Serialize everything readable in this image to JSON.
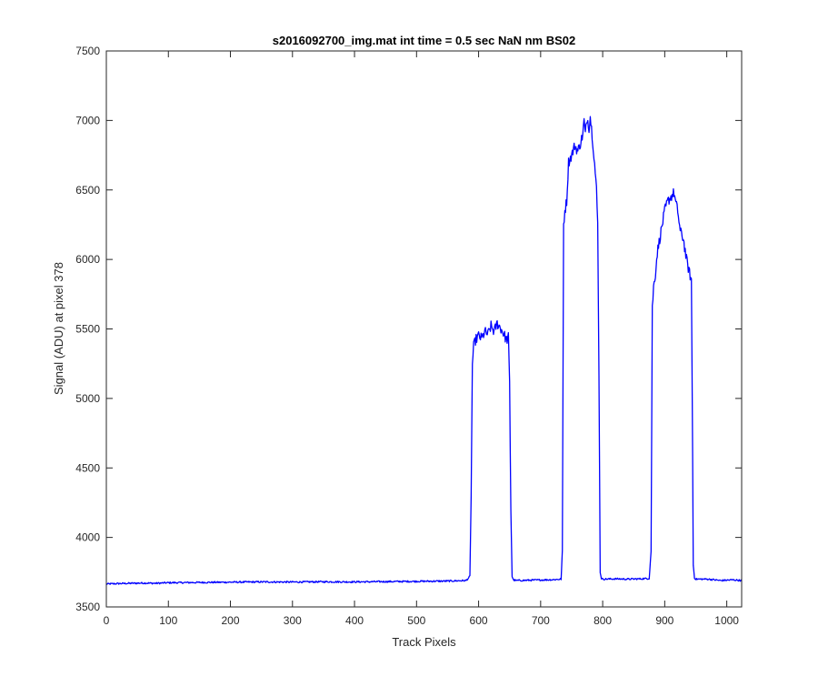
{
  "chart_data": {
    "type": "line",
    "title": "s2016092700_img.mat int time = 0.5 sec  NaN nm BS02",
    "xlabel": "Track Pixels",
    "ylabel": "Signal (ADU) at pixel 378",
    "xlim": [
      0,
      1024
    ],
    "ylim": [
      3500,
      7500
    ],
    "xticks": [
      0,
      100,
      200,
      300,
      400,
      500,
      600,
      700,
      800,
      900,
      1000
    ],
    "yticks": [
      3500,
      4000,
      4500,
      5000,
      5500,
      6000,
      6500,
      7000,
      7500
    ],
    "grid": false,
    "legend": "none",
    "line_color": "#0000ff",
    "series": [
      {
        "x": [
          0,
          20,
          40,
          60,
          80,
          100,
          150,
          200,
          250,
          300,
          350,
          400,
          450,
          500,
          550,
          580,
          586,
          588,
          590,
          592,
          595,
          600,
          605,
          610,
          615,
          620,
          625,
          630,
          635,
          640,
          645,
          648,
          650,
          652,
          654,
          656,
          660,
          680,
          700,
          720,
          733,
          735,
          737,
          739,
          742,
          745,
          750,
          755,
          760,
          765,
          768,
          770,
          772,
          775,
          778,
          780,
          783,
          786,
          790,
          792,
          794,
          796,
          798,
          800,
          820,
          840,
          860,
          875,
          878,
          880,
          882,
          885,
          888,
          892,
          896,
          900,
          905,
          910,
          915,
          918,
          921,
          925,
          930,
          935,
          940,
          943,
          945,
          946,
          948,
          950,
          970,
          990,
          1010,
          1024
        ],
        "y": [
          3665,
          3668,
          3670,
          3672,
          3670,
          3674,
          3676,
          3678,
          3680,
          3679,
          3681,
          3680,
          3682,
          3684,
          3686,
          3690,
          3720,
          4300,
          5250,
          5370,
          5420,
          5450,
          5430,
          5480,
          5460,
          5520,
          5480,
          5540,
          5510,
          5470,
          5420,
          5440,
          5100,
          4200,
          3720,
          3695,
          3690,
          3692,
          3694,
          3696,
          3700,
          3900,
          6250,
          6350,
          6420,
          6700,
          6750,
          6820,
          6780,
          6850,
          6900,
          7000,
          6900,
          7020,
          6950,
          7030,
          6900,
          6750,
          6500,
          6250,
          5200,
          3750,
          3705,
          3700,
          3702,
          3700,
          3702,
          3705,
          3900,
          5650,
          5800,
          5900,
          6050,
          6150,
          6250,
          6350,
          6420,
          6450,
          6480,
          6400,
          6350,
          6200,
          6150,
          6000,
          5900,
          5850,
          4600,
          3800,
          3710,
          3700,
          3700,
          3690,
          3695,
          3690
        ]
      }
    ]
  }
}
